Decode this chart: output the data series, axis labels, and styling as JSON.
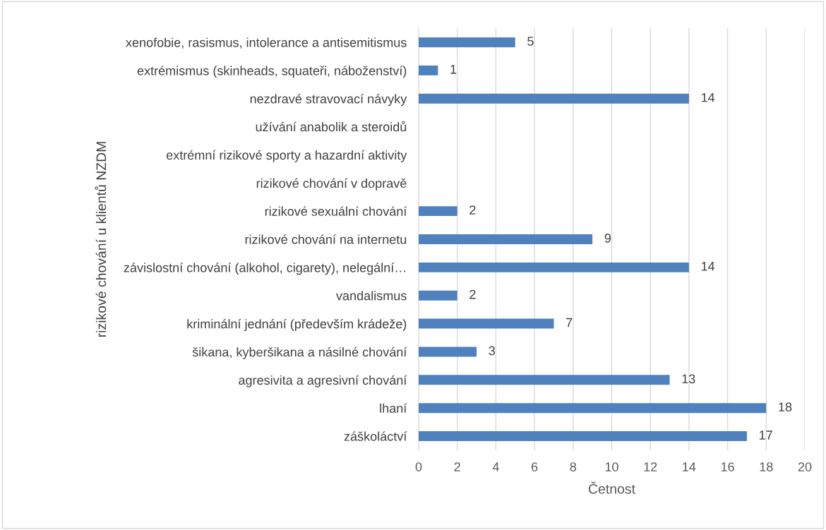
{
  "chart_data": {
    "type": "bar",
    "orientation": "horizontal",
    "xlabel": "Četnost",
    "ylabel": "rizikové chování u klientů NZDM",
    "categories": [
      "xenofobie, rasismus, intolerance a antisemitismus",
      "extrémismus (skinheads, squateři, náboženství)",
      "nezdravé stravovací návyky",
      "užívání anabolik a steroidů",
      "extrémní rizikové sporty a hazardní aktivity",
      "rizikové chování v dopravě",
      "rizikové sexuální chování",
      "rizikové chování na internetu",
      "závislostní chování (alkohol, cigarety), nelegální…",
      "vandalismus",
      "kriminální jednání (především krádeže)",
      "šikana, kyberšikana a násilné chování",
      "agresivita a agresivní chování",
      "lhaní",
      "záškoláctví"
    ],
    "values": [
      5,
      1,
      14,
      null,
      null,
      null,
      2,
      9,
      14,
      2,
      7,
      3,
      13,
      18,
      17
    ],
    "color": "#4e81bd",
    "xlim": [
      0,
      20
    ],
    "xticks": [
      0,
      2,
      4,
      6,
      8,
      10,
      12,
      14,
      16,
      18,
      20
    ],
    "grid": "x",
    "data_labels": true,
    "legend": false
  }
}
